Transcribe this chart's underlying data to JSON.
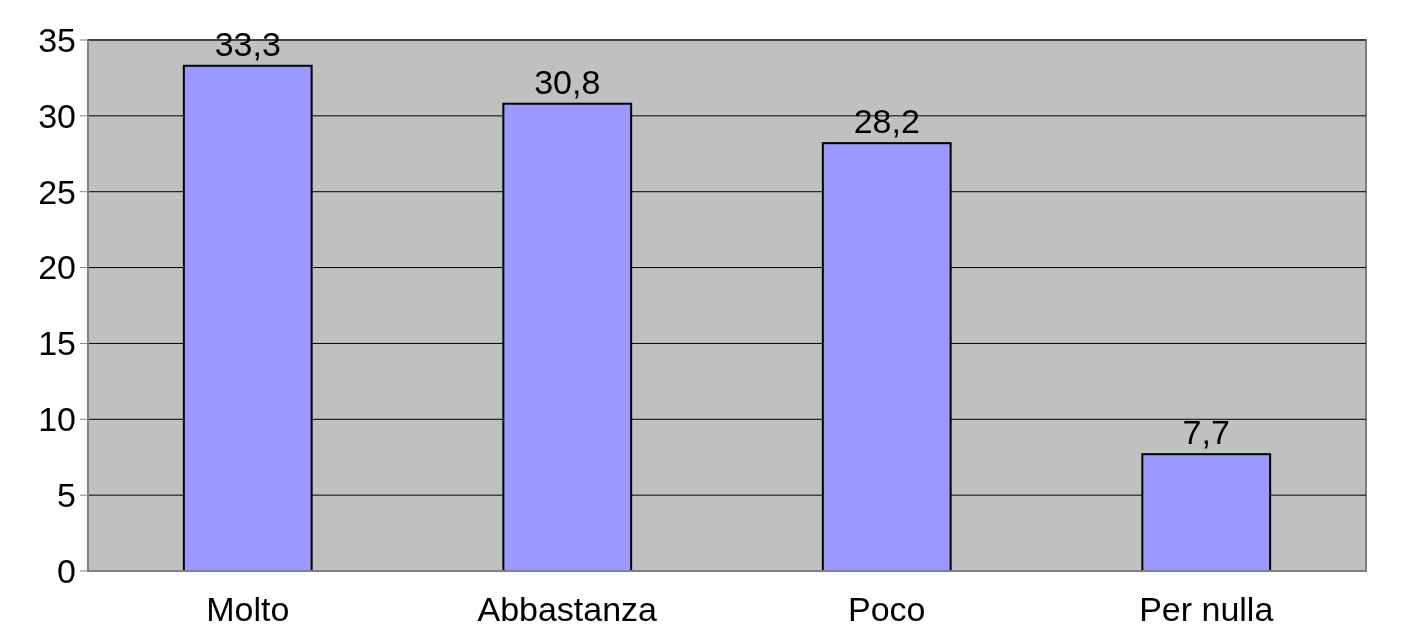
{
  "chart_data": {
    "type": "bar",
    "categories": [
      "Molto",
      "Abbastanza",
      "Poco",
      "Per nulla"
    ],
    "values": [
      33.3,
      30.8,
      28.2,
      7.7
    ],
    "value_labels": [
      "33,3",
      "30,8",
      "28,2",
      "7,7"
    ],
    "color": "#9999ff",
    "ylim": [
      0,
      35
    ],
    "yticks": [
      0,
      5,
      10,
      15,
      20,
      25,
      30,
      35
    ],
    "grid": "y"
  }
}
